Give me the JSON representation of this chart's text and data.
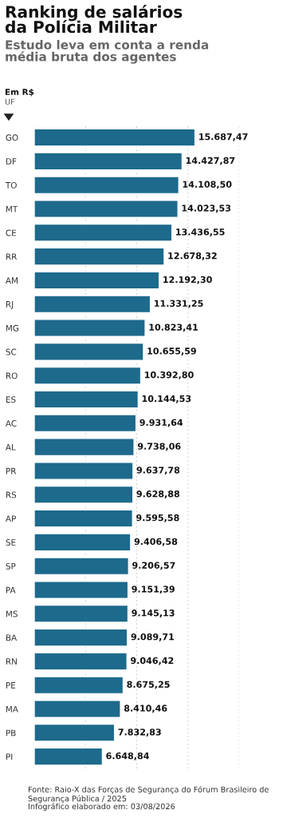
{
  "chart_data": {
    "type": "bar",
    "orientation": "horizontal",
    "title": "Ranking de salários\nda Polícia Militar",
    "subtitle": "Estudo leva em conta a renda\nmédia bruta dos agentes",
    "ylabel": "UF",
    "annotations": [
      "Em R$",
      "Fonte: Raio-X das Forças de Segurança do Fórum Brasileiro de Segurança Pública / 2025",
      "Infográfico elaborado em: 03/08/2026"
    ],
    "categories": [
      "GO",
      "DF",
      "TO",
      "MT",
      "CE",
      "RR",
      "AM",
      "RJ",
      "MG",
      "SC",
      "RO",
      "ES",
      "AC",
      "AL",
      "PR",
      "RS",
      "AP",
      "SE",
      "SP",
      "PA",
      "MS",
      "BA",
      "RN",
      "PE",
      "MA",
      "PB",
      "PI"
    ],
    "values": [
      15687.47,
      14427.87,
      14108.5,
      14023.53,
      13436.55,
      12678.32,
      12192.3,
      11331.25,
      10823.41,
      10655.59,
      10392.8,
      10144.53,
      9931.64,
      9738.06,
      9637.78,
      9628.88,
      9595.58,
      9406.58,
      9206.57,
      9151.39,
      9145.13,
      9089.71,
      9046.42,
      8675.25,
      8410.46,
      7832.83,
      6648.84
    ],
    "value_labels": [
      "15.687,47",
      "14.427,87",
      "14.108,50",
      "14.023,53",
      "13.436,55",
      "12.678,32",
      "12.192,30",
      "11.331,25",
      "10.823,41",
      "10.655,59",
      "10.392,80",
      "10.144,53",
      "9.931,64",
      "9.738,06",
      "9.637,78",
      "9.628,88",
      "9.595,58",
      "9.406,58",
      "9.206,57",
      "9.151,39",
      "9.145,13",
      "9.089,71",
      "9.046,42",
      "8.675,25",
      "8.410,46",
      "7.832,83",
      "6.648,84"
    ],
    "color": "#1d6a8c",
    "xlim": [
      0,
      20000
    ],
    "xticks": [
      {
        "value": 5000,
        "label": null
      },
      {
        "value": 10000,
        "label": null
      },
      {
        "value": 15000,
        "label": null
      },
      {
        "value": 20000,
        "label": null
      }
    ],
    "tick_labels": "y",
    "grid": "x"
  }
}
